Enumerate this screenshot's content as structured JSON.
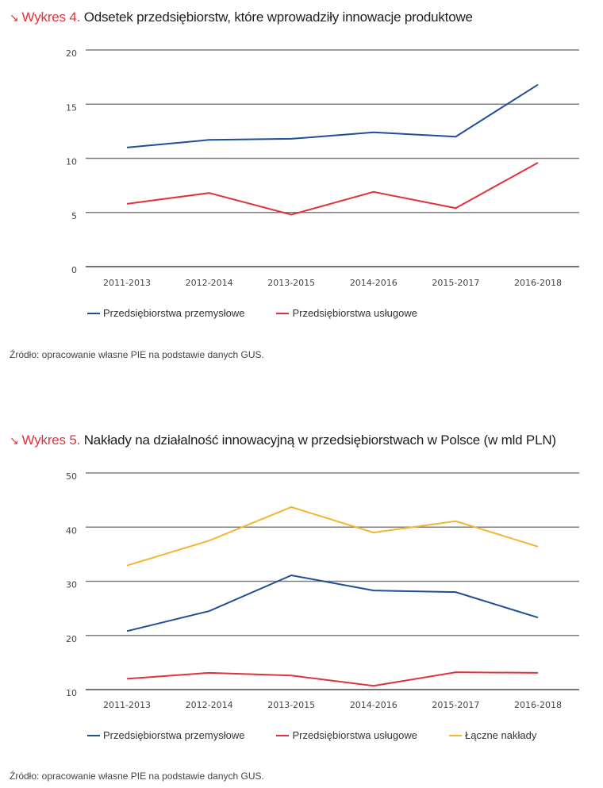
{
  "colors": {
    "accent": "#e0323e",
    "industrial": "#1f4e99",
    "services": "#e0323e",
    "total": "#f2b630",
    "grid": "#8a8a8a"
  },
  "charts": [
    {
      "arrow_icon": "↘",
      "number_label": "Wykres 4.",
      "title_text": "Odsetek przedsiębiorstw, które wprowadziły innowacje produktowe",
      "source": "Źródło: opracowanie własne PIE na podstawie danych GUS.",
      "legend": [
        "Przedsiębiorstwa przemysłowe",
        "Przedsiębiorstwa usługowe"
      ]
    },
    {
      "arrow_icon": "↘",
      "number_label": "Wykres 5.",
      "title_text": "Nakłady na działalność innowacyjną w przedsiębiorstwach w Polsce (w mld PLN)",
      "source": "Źródło: opracowanie własne PIE na podstawie danych GUS.",
      "legend": [
        "Przedsiębiorstwa przemysłowe",
        "Przedsiębiorstwa usługowe",
        "Łączne nakłady"
      ]
    }
  ],
  "chart_data": [
    {
      "type": "line",
      "title": "Wykres 4. Odsetek przedsiębiorstw, które wprowadziły innowacje produktowe",
      "xlabel": "",
      "ylabel": "",
      "categories": [
        "2011-2013",
        "2012-2014",
        "2013-2015",
        "2014-2016",
        "2015-2017",
        "2016-2018"
      ],
      "ylim": [
        0,
        20
      ],
      "yticks": [
        0,
        5,
        10,
        15,
        20
      ],
      "grid": true,
      "legend_position": "bottom",
      "series": [
        {
          "name": "Przedsiębiorstwa przemysłowe",
          "color": "#1f4e99",
          "values": [
            11.0,
            11.7,
            11.8,
            12.4,
            12.0,
            16.8
          ]
        },
        {
          "name": "Przedsiębiorstwa usługowe",
          "color": "#e0323e",
          "values": [
            5.8,
            6.8,
            4.8,
            6.9,
            5.4,
            9.6
          ]
        }
      ]
    },
    {
      "type": "line",
      "title": "Wykres 5. Nakłady na działalność innowacyjną w przedsiębiorstwach w Polsce (w mld PLN)",
      "xlabel": "",
      "ylabel": "",
      "categories": [
        "2011-2013",
        "2012-2014",
        "2013-2015",
        "2014-2016",
        "2015-2017",
        "2016-2018"
      ],
      "ylim": [
        10,
        50
      ],
      "yticks": [
        10,
        20,
        30,
        40,
        50
      ],
      "grid": true,
      "legend_position": "bottom",
      "series": [
        {
          "name": "Przedsiębiorstwa przemysłowe",
          "color": "#1f4e99",
          "values": [
            20.8,
            24.5,
            31.1,
            28.3,
            28.0,
            23.3
          ]
        },
        {
          "name": "Przedsiębiorstwa usługowe",
          "color": "#e0323e",
          "values": [
            12.0,
            13.1,
            12.6,
            10.7,
            13.2,
            13.1
          ]
        },
        {
          "name": "Łączne nakłady",
          "color": "#f2b630",
          "values": [
            32.9,
            37.5,
            43.7,
            39.0,
            41.1,
            36.4
          ]
        }
      ]
    }
  ]
}
